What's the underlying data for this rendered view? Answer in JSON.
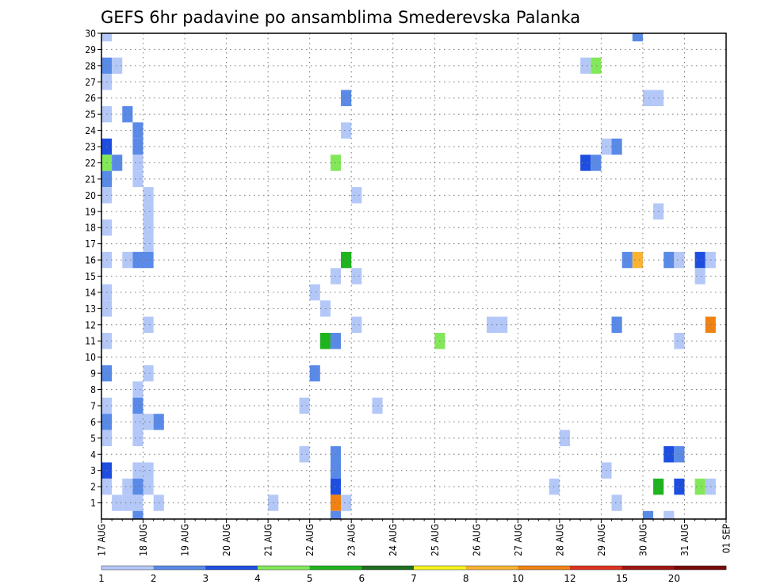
{
  "chart_data": {
    "type": "heatmap",
    "title": "GEFS 6hr padavine po ansamblima Smederevska Palanka",
    "xlabel": "",
    "ylabel": "",
    "x_tick_labels": [
      "17 AUG",
      "18 AUG",
      "19 AUG",
      "20 AUG",
      "21 AUG",
      "22 AUG",
      "23 AUG",
      "24 AUG",
      "25 AUG",
      "26 AUG",
      "27 AUG",
      "28 AUG",
      "29 AUG",
      "30 AUG",
      "31 AUG",
      "01 SEP"
    ],
    "y_tick_labels": [
      "1",
      "2",
      "3",
      "4",
      "5",
      "6",
      "7",
      "8",
      "9",
      "10",
      "11",
      "12",
      "13",
      "14",
      "15",
      "16",
      "17",
      "18",
      "19",
      "20",
      "21",
      "22",
      "23",
      "24",
      "25",
      "26",
      "27",
      "28",
      "29",
      "30"
    ],
    "ylim": [
      0,
      30
    ],
    "time_step_hours": 6,
    "grid": true,
    "colorbar": {
      "levels": [
        "1",
        "2",
        "3",
        "4",
        "5",
        "6",
        "7",
        "8",
        "10",
        "12",
        "15",
        "20"
      ],
      "colors": [
        "#b4c8f8",
        "#5a8ae8",
        "#1e4ee0",
        "#82e85a",
        "#1eb41e",
        "#1e6e1e",
        "#f5f51e",
        "#fab432",
        "#f08214",
        "#dc321e",
        "#a01414",
        "#780a0a"
      ]
    },
    "cells_note": "step = 6-hour interval index from 17 AUG 00UTC; member = ensemble member row; level = colorbar bin index (0 = 1-2 mm, 1 = 2-3, 2 = 3-4, 3 = 4-5, 4 = 5-6, 8 = 10-12)",
    "cells": [
      {
        "step": 0,
        "member": 30,
        "level": 0
      },
      {
        "step": 0,
        "member": 28,
        "level": 1
      },
      {
        "step": 1,
        "member": 28,
        "level": 0
      },
      {
        "step": 0,
        "member": 27,
        "level": 0
      },
      {
        "step": 0,
        "member": 25,
        "level": 0
      },
      {
        "step": 2,
        "member": 25,
        "level": 1
      },
      {
        "step": 3,
        "member": 24,
        "level": 1
      },
      {
        "step": 3,
        "member": 23,
        "level": 1
      },
      {
        "step": 0,
        "member": 23,
        "level": 2
      },
      {
        "step": 0,
        "member": 22,
        "level": 3
      },
      {
        "step": 1,
        "member": 22,
        "level": 1
      },
      {
        "step": 3,
        "member": 22,
        "level": 0
      },
      {
        "step": 0,
        "member": 21,
        "level": 1
      },
      {
        "step": 3,
        "member": 21,
        "level": 0
      },
      {
        "step": 0,
        "member": 20,
        "level": 0
      },
      {
        "step": 4,
        "member": 20,
        "level": 0
      },
      {
        "step": 4,
        "member": 19,
        "level": 0
      },
      {
        "step": 0,
        "member": 18,
        "level": 0
      },
      {
        "step": 4,
        "member": 18,
        "level": 0
      },
      {
        "step": 4,
        "member": 17,
        "level": 0
      },
      {
        "step": 0,
        "member": 16,
        "level": 0
      },
      {
        "step": 2,
        "member": 16,
        "level": 0
      },
      {
        "step": 3,
        "member": 16,
        "level": 1
      },
      {
        "step": 4,
        "member": 16,
        "level": 1
      },
      {
        "step": 0,
        "member": 14,
        "level": 0
      },
      {
        "step": 0,
        "member": 13,
        "level": 0
      },
      {
        "step": 4,
        "member": 12,
        "level": 0
      },
      {
        "step": 0,
        "member": 11,
        "level": 0
      },
      {
        "step": 0,
        "member": 9,
        "level": 1
      },
      {
        "step": 4,
        "member": 9,
        "level": 0
      },
      {
        "step": 3,
        "member": 8,
        "level": 0
      },
      {
        "step": 0,
        "member": 7,
        "level": 0
      },
      {
        "step": 3,
        "member": 7,
        "level": 1
      },
      {
        "step": 0,
        "member": 6,
        "level": 1
      },
      {
        "step": 3,
        "member": 6,
        "level": 0
      },
      {
        "step": 4,
        "member": 6,
        "level": 0
      },
      {
        "step": 5,
        "member": 6,
        "level": 1
      },
      {
        "step": 0,
        "member": 5,
        "level": 0
      },
      {
        "step": 3,
        "member": 5,
        "level": 0
      },
      {
        "step": 0,
        "member": 3,
        "level": 2
      },
      {
        "step": 3,
        "member": 3,
        "level": 0
      },
      {
        "step": 4,
        "member": 3,
        "level": 0
      },
      {
        "step": 0,
        "member": 2,
        "level": 0
      },
      {
        "step": 2,
        "member": 2,
        "level": 0
      },
      {
        "step": 3,
        "member": 2,
        "level": 1
      },
      {
        "step": 4,
        "member": 2,
        "level": 0
      },
      {
        "step": 1,
        "member": 1,
        "level": 0
      },
      {
        "step": 2,
        "member": 1,
        "level": 0
      },
      {
        "step": 3,
        "member": 1,
        "level": 0
      },
      {
        "step": 5,
        "member": 1,
        "level": 0
      },
      {
        "step": 3,
        "member": 0,
        "level": 1
      },
      {
        "step": 16,
        "member": 1,
        "level": 0
      },
      {
        "step": 20,
        "member": 14,
        "level": 0
      },
      {
        "step": 21,
        "member": 13,
        "level": 0
      },
      {
        "step": 20,
        "member": 9,
        "level": 1
      },
      {
        "step": 19,
        "member": 7,
        "level": 0
      },
      {
        "step": 19,
        "member": 4,
        "level": 0
      },
      {
        "step": 23,
        "member": 26,
        "level": 1
      },
      {
        "step": 23,
        "member": 24,
        "level": 0
      },
      {
        "step": 22,
        "member": 22,
        "level": 3
      },
      {
        "step": 24,
        "member": 20,
        "level": 0
      },
      {
        "step": 23,
        "member": 16,
        "level": 4
      },
      {
        "step": 22,
        "member": 15,
        "level": 0
      },
      {
        "step": 24,
        "member": 15,
        "level": 0
      },
      {
        "step": 24,
        "member": 12,
        "level": 0
      },
      {
        "step": 21,
        "member": 11,
        "level": 4
      },
      {
        "step": 22,
        "member": 11,
        "level": 1
      },
      {
        "step": 22,
        "member": 4,
        "level": 1
      },
      {
        "step": 22,
        "member": 3,
        "level": 1
      },
      {
        "step": 22,
        "member": 2,
        "level": 2
      },
      {
        "step": 22,
        "member": 1,
        "level": 8
      },
      {
        "step": 23,
        "member": 1,
        "level": 0
      },
      {
        "step": 22,
        "member": 0,
        "level": 1
      },
      {
        "step": 26,
        "member": 7,
        "level": 0
      },
      {
        "step": 32,
        "member": 11,
        "level": 3
      },
      {
        "step": 37,
        "member": 12,
        "level": 0
      },
      {
        "step": 38,
        "member": 12,
        "level": 0
      },
      {
        "step": 44,
        "member": 5,
        "level": 0
      },
      {
        "step": 43,
        "member": 2,
        "level": 0
      },
      {
        "step": 46,
        "member": 28,
        "level": 0
      },
      {
        "step": 47,
        "member": 28,
        "level": 3
      },
      {
        "step": 48,
        "member": 23,
        "level": 0
      },
      {
        "step": 49,
        "member": 23,
        "level": 1
      },
      {
        "step": 46,
        "member": 22,
        "level": 2
      },
      {
        "step": 47,
        "member": 22,
        "level": 1
      },
      {
        "step": 49,
        "member": 12,
        "level": 1
      },
      {
        "step": 48,
        "member": 3,
        "level": 0
      },
      {
        "step": 49,
        "member": 1,
        "level": 0
      },
      {
        "step": 51,
        "member": 30,
        "level": 1
      },
      {
        "step": 52,
        "member": 26,
        "level": 0
      },
      {
        "step": 53,
        "member": 26,
        "level": 0
      },
      {
        "step": 53,
        "member": 19,
        "level": 0
      },
      {
        "step": 50,
        "member": 16,
        "level": 1
      },
      {
        "step": 51,
        "member": 16,
        "level": 7
      },
      {
        "step": 54,
        "member": 16,
        "level": 1
      },
      {
        "step": 55,
        "member": 16,
        "level": 0
      },
      {
        "step": 57,
        "member": 16,
        "level": 2
      },
      {
        "step": 58,
        "member": 16,
        "level": 0
      },
      {
        "step": 57,
        "member": 15,
        "level": 0
      },
      {
        "step": 58,
        "member": 12,
        "level": 8
      },
      {
        "step": 55,
        "member": 11,
        "level": 0
      },
      {
        "step": 54,
        "member": 4,
        "level": 2
      },
      {
        "step": 55,
        "member": 4,
        "level": 1
      },
      {
        "step": 53,
        "member": 2,
        "level": 4
      },
      {
        "step": 55,
        "member": 2,
        "level": 2
      },
      {
        "step": 57,
        "member": 2,
        "level": 3
      },
      {
        "step": 58,
        "member": 2,
        "level": 0
      },
      {
        "step": 52,
        "member": 0,
        "level": 1
      },
      {
        "step": 54,
        "member": 0,
        "level": 0
      }
    ]
  }
}
